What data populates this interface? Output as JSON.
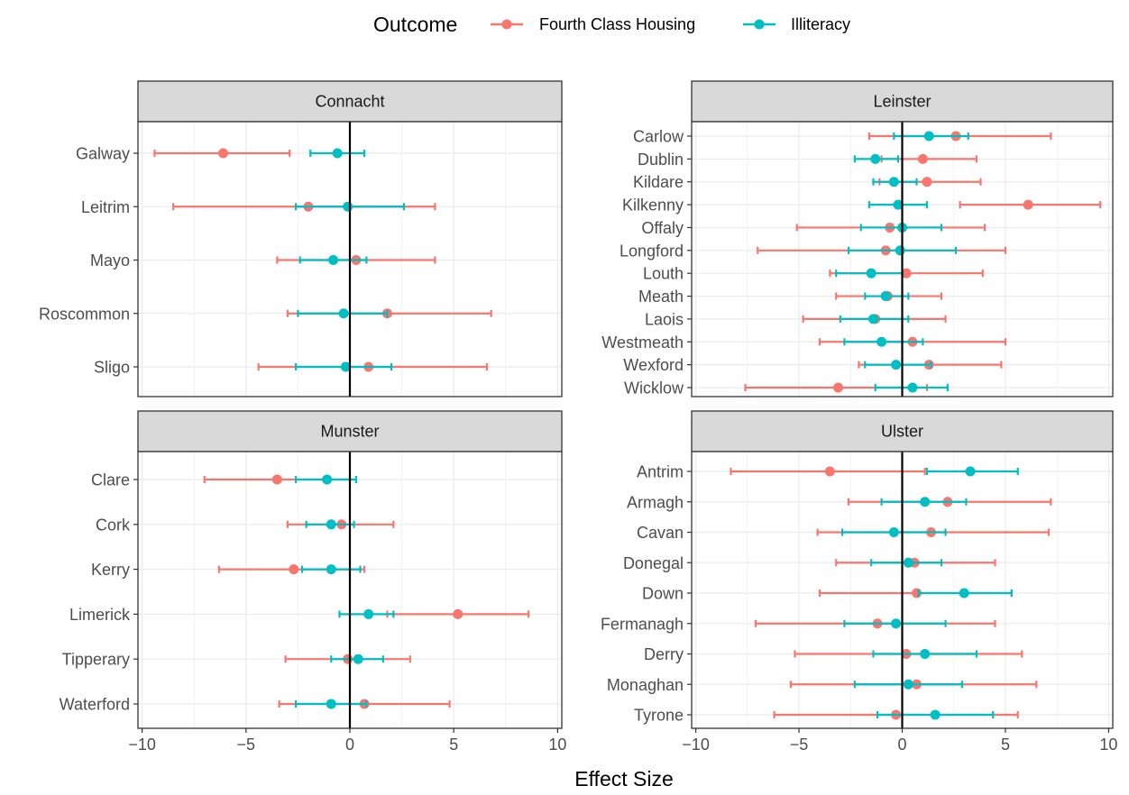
{
  "chart_data": {
    "type": "forest",
    "xlabel": "Effect Size",
    "xlim": [
      -10.2,
      10.2
    ],
    "xticks": [
      -10,
      -5,
      0,
      5,
      10
    ],
    "xtick_labels": [
      "−10",
      "−5",
      "0",
      "5",
      "10"
    ],
    "reference_line": 0,
    "grid": true,
    "legend": {
      "title": "Outcome",
      "position": "top",
      "entries": [
        {
          "name": "Fourth Class Housing",
          "color": "#F8766D"
        },
        {
          "name": "Illiteracy",
          "color": "#00BFC4"
        }
      ]
    },
    "series_names": [
      "Fourth Class Housing",
      "Illiteracy"
    ],
    "panels": [
      {
        "title": "Connacht",
        "categories": [
          "Galway",
          "Leitrim",
          "Mayo",
          "Roscommon",
          "Sligo"
        ],
        "series": [
          {
            "name": "Fourth Class Housing",
            "estimate": [
              -6.1,
              -2.0,
              0.3,
              1.8,
              0.9
            ],
            "lower": [
              -9.4,
              -8.5,
              -3.5,
              -3.0,
              -4.4
            ],
            "upper": [
              -2.9,
              4.1,
              4.1,
              6.8,
              6.6
            ]
          },
          {
            "name": "Illiteracy",
            "estimate": [
              -0.6,
              -0.1,
              -0.8,
              -0.3,
              -0.2
            ],
            "lower": [
              -1.9,
              -2.6,
              -2.4,
              -2.5,
              -2.6
            ],
            "upper": [
              0.7,
              2.6,
              0.8,
              1.8,
              2.0
            ]
          }
        ]
      },
      {
        "title": "Leinster",
        "categories": [
          "Carlow",
          "Dublin",
          "Kildare",
          "Kilkenny",
          "Offaly",
          "Longford",
          "Louth",
          "Meath",
          "Laois",
          "Westmeath",
          "Wexford",
          "Wicklow"
        ],
        "series": [
          {
            "name": "Fourth Class Housing",
            "estimate": [
              2.6,
              1.0,
              1.2,
              6.1,
              -0.6,
              -0.8,
              0.2,
              -0.7,
              -1.3,
              0.5,
              1.3,
              -3.1
            ],
            "lower": [
              -1.6,
              -1.0,
              -1.1,
              2.8,
              -5.1,
              -7.0,
              -3.5,
              -3.2,
              -4.8,
              -4.0,
              -2.1,
              -7.6
            ],
            "upper": [
              7.2,
              3.6,
              3.8,
              9.6,
              4.0,
              5.0,
              3.9,
              1.9,
              2.1,
              5.0,
              4.8,
              1.2
            ]
          },
          {
            "name": "Illiteracy",
            "estimate": [
              1.3,
              -1.3,
              -0.4,
              -0.2,
              0.0,
              -0.1,
              -1.5,
              -0.8,
              -1.4,
              -1.0,
              -0.3,
              0.5
            ],
            "lower": [
              -0.4,
              -2.3,
              -1.4,
              -1.6,
              -2.0,
              -2.6,
              -3.2,
              -1.8,
              -3.0,
              -2.8,
              -1.8,
              -1.3
            ],
            "upper": [
              3.2,
              -0.2,
              0.7,
              1.2,
              1.9,
              2.6,
              0.0,
              0.3,
              0.3,
              1.0,
              1.4,
              2.2
            ]
          }
        ]
      },
      {
        "title": "Munster",
        "categories": [
          "Clare",
          "Cork",
          "Kerry",
          "Limerick",
          "Tipperary",
          "Waterford"
        ],
        "series": [
          {
            "name": "Fourth Class Housing",
            "estimate": [
              -3.5,
              -0.4,
              -2.7,
              5.2,
              -0.1,
              0.7
            ],
            "lower": [
              -7.0,
              -3.0,
              -6.3,
              1.8,
              -3.1,
              -3.4
            ],
            "upper": [
              0.0,
              2.1,
              0.7,
              8.6,
              2.9,
              4.8
            ]
          },
          {
            "name": "Illiteracy",
            "estimate": [
              -1.1,
              -0.9,
              -0.9,
              0.9,
              0.4,
              -0.9
            ],
            "lower": [
              -2.6,
              -2.1,
              -2.3,
              -0.5,
              -0.9,
              -2.6
            ],
            "upper": [
              0.3,
              0.2,
              0.5,
              2.1,
              1.6,
              0.8
            ]
          }
        ]
      },
      {
        "title": "Ulster",
        "categories": [
          "Antrim",
          "Armagh",
          "Cavan",
          "Donegal",
          "Down",
          "Fermanagh",
          "Derry",
          "Monaghan",
          "Tyrone"
        ],
        "series": [
          {
            "name": "Fourth Class Housing",
            "estimate": [
              -3.5,
              2.2,
              1.4,
              0.6,
              0.7,
              -1.2,
              0.2,
              0.7,
              -0.3
            ],
            "lower": [
              -8.3,
              -2.6,
              -4.1,
              -3.2,
              -4.0,
              -7.1,
              -5.2,
              -5.4,
              -6.2
            ],
            "upper": [
              1.1,
              7.2,
              7.1,
              4.5,
              5.3,
              4.5,
              5.8,
              6.5,
              5.6
            ]
          },
          {
            "name": "Illiteracy",
            "estimate": [
              3.3,
              1.1,
              -0.4,
              0.3,
              3.0,
              -0.3,
              1.1,
              0.3,
              1.6
            ],
            "lower": [
              1.2,
              -1.0,
              -2.9,
              -1.5,
              0.8,
              -2.8,
              -1.4,
              -2.3,
              -1.2
            ],
            "upper": [
              5.6,
              3.1,
              2.1,
              1.9,
              5.3,
              2.1,
              3.6,
              2.9,
              4.4
            ]
          }
        ]
      }
    ]
  }
}
